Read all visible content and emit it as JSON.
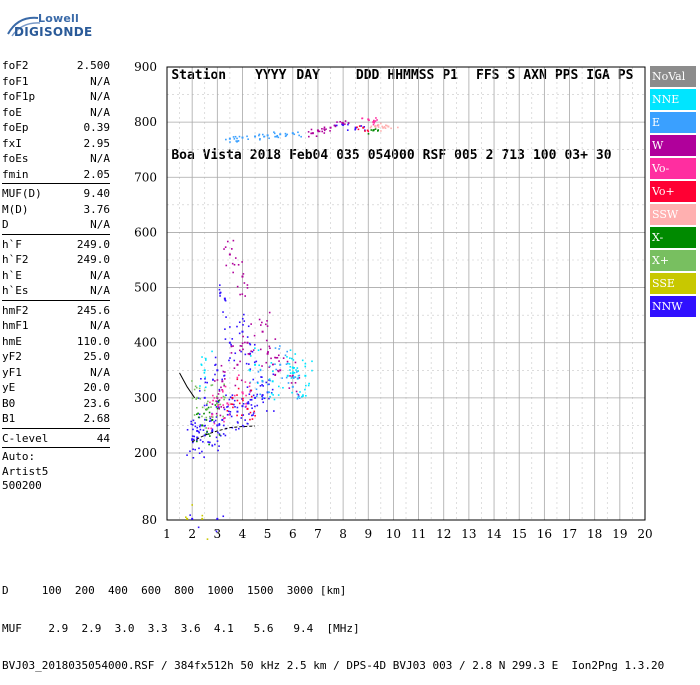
{
  "logo": {
    "line1": "Lowell",
    "line2": "DIGISONDE"
  },
  "header": {
    "columns": [
      "Station",
      "YYYY",
      "DAY",
      "DDD",
      "HHMMSS",
      "P1",
      "FFS",
      "S",
      "AXN",
      "PPS",
      "IGA",
      "PS"
    ],
    "values": [
      "Boa Vista",
      "2018",
      "Feb04",
      "035",
      "054000",
      "RSF",
      "005",
      "2",
      "713",
      "100",
      "03+",
      "30"
    ]
  },
  "params_groups": [
    [
      {
        "name": "foF2",
        "value": "2.500"
      },
      {
        "name": "foF1",
        "value": "N/A"
      },
      {
        "name": "foF1p",
        "value": "N/A"
      },
      {
        "name": "foE",
        "value": "N/A"
      },
      {
        "name": "foEp",
        "value": "0.39"
      },
      {
        "name": "fxI",
        "value": "2.95"
      },
      {
        "name": "foEs",
        "value": "N/A"
      },
      {
        "name": "fmin",
        "value": "2.05"
      }
    ],
    [
      {
        "name": "MUF(D)",
        "value": "9.40"
      },
      {
        "name": "M(D)",
        "value": "3.76"
      },
      {
        "name": "D",
        "value": "N/A"
      }
    ],
    [
      {
        "name": "h`F",
        "value": "249.0"
      },
      {
        "name": "h`F2",
        "value": "249.0"
      },
      {
        "name": "h`E",
        "value": "N/A"
      },
      {
        "name": "h`Es",
        "value": "N/A"
      }
    ],
    [
      {
        "name": "hmF2",
        "value": "245.6"
      },
      {
        "name": "hmF1",
        "value": "N/A"
      },
      {
        "name": "hmE",
        "value": "110.0"
      },
      {
        "name": "yF2",
        "value": "25.0"
      },
      {
        "name": "yF1",
        "value": "N/A"
      },
      {
        "name": "yE",
        "value": "20.0"
      },
      {
        "name": "B0",
        "value": "23.6"
      },
      {
        "name": "B1",
        "value": "2.68"
      }
    ],
    [
      {
        "name": "C-level",
        "value": "44"
      }
    ]
  ],
  "auto": {
    "line1": "Auto:",
    "line2": "Artist5",
    "line3": "500200"
  },
  "legend": [
    {
      "label": "NoVal",
      "color": "#8c8c8c"
    },
    {
      "label": "NNE",
      "color": "#00e5ff"
    },
    {
      "label": "E",
      "color": "#3aa0ff"
    },
    {
      "label": "W",
      "color": "#b0009b"
    },
    {
      "label": "Vo-",
      "color": "#ff2ea0"
    },
    {
      "label": "Vo+",
      "color": "#ff0033"
    },
    {
      "label": "SSW",
      "color": "#ffb0b0"
    },
    {
      "label": "X-",
      "color": "#008a00"
    },
    {
      "label": "X+",
      "color": "#78bf60"
    },
    {
      "label": "SSE",
      "color": "#c8c800"
    },
    {
      "label": "NNW",
      "color": "#3010ff"
    }
  ],
  "bottom": {
    "line1": "D     100  200  400  600  800  1000  1500  3000 [km]",
    "line2": "MUF    2.9  2.9  3.0  3.3  3.6  4.1   5.6   9.4  [MHz]",
    "line3": "BVJ03_2018035054000.RSF / 384fx512h 50 kHz 2.5 km / DPS-4D BVJ03 003 / 2.8 N 299.3 E  Ion2Png 1.3.20"
  },
  "chart_data": {
    "type": "scatter",
    "title": "",
    "xlabel": "",
    "ylabel": "",
    "xlim": [
      1,
      20
    ],
    "ylim": [
      80,
      900
    ],
    "x_ticks": [
      1,
      2,
      3,
      4,
      5,
      6,
      7,
      8,
      9,
      10,
      11,
      12,
      13,
      14,
      15,
      16,
      17,
      18,
      19,
      20
    ],
    "y_ticks": [
      80,
      200,
      300,
      400,
      500,
      600,
      700,
      800,
      900
    ],
    "y_axis": "piecewise: 80 at bottom, linear 200-900",
    "grid": true,
    "series": [
      {
        "name": "NNW",
        "color": "#3010ff",
        "points": [
          [
            2.0,
            225
          ],
          [
            2.2,
            228
          ],
          [
            2.5,
            232
          ],
          [
            2.8,
            240
          ],
          [
            3.0,
            250
          ],
          [
            3.2,
            260
          ],
          [
            3.5,
            270
          ],
          [
            3.8,
            275
          ],
          [
            4.0,
            285
          ],
          [
            4.2,
            290
          ],
          [
            4.5,
            300
          ],
          [
            4.8,
            305
          ],
          [
            5.0,
            310
          ],
          [
            3.0,
            350
          ],
          [
            3.5,
            400
          ],
          [
            4.0,
            420
          ],
          [
            2.5,
            300
          ],
          [
            2.2,
            240
          ],
          [
            3.3,
            480
          ],
          [
            4.3,
            380
          ],
          [
            8.0,
            795
          ],
          [
            8.5,
            790
          ],
          [
            2.0,
            82
          ],
          [
            3.0,
            82
          ]
        ]
      },
      {
        "name": "W",
        "color": "#b0009b",
        "points": [
          [
            3.2,
            330
          ],
          [
            3.8,
            360
          ],
          [
            4.2,
            400
          ],
          [
            4.8,
            420
          ],
          [
            5.0,
            380
          ],
          [
            5.5,
            350
          ],
          [
            6.0,
            340
          ],
          [
            3.0,
            300
          ],
          [
            7.0,
            785
          ],
          [
            7.5,
            790
          ],
          [
            8.0,
            798
          ],
          [
            6.8,
            780
          ],
          [
            4.0,
            520
          ],
          [
            3.5,
            560
          ]
        ]
      },
      {
        "name": "NNE",
        "color": "#00e5ff",
        "points": [
          [
            5.8,
            340
          ],
          [
            6.2,
            335
          ],
          [
            6.0,
            355
          ],
          [
            6.5,
            340
          ],
          [
            2.5,
            350
          ],
          [
            4.5,
            360
          ],
          [
            5.2,
            330
          ]
        ]
      },
      {
        "name": "E",
        "color": "#3aa0ff",
        "points": [
          [
            3.5,
            770
          ],
          [
            4.0,
            772
          ],
          [
            4.5,
            774
          ],
          [
            5.0,
            776
          ],
          [
            5.5,
            778
          ],
          [
            6.0,
            780
          ],
          [
            5.5,
            360
          ],
          [
            4.8,
            330
          ],
          [
            6.0,
            320
          ]
        ]
      },
      {
        "name": "Vo-",
        "color": "#ff2ea0",
        "points": [
          [
            2.8,
            270
          ],
          [
            3.4,
            290
          ],
          [
            4.0,
            310
          ],
          [
            9.0,
            805
          ],
          [
            9.2,
            800
          ]
        ]
      },
      {
        "name": "Vo+",
        "color": "#ff0033",
        "points": [
          [
            3.6,
            300
          ],
          [
            4.2,
            280
          ],
          [
            8.8,
            790
          ]
        ]
      },
      {
        "name": "SSW",
        "color": "#ffb0b0",
        "points": [
          [
            9.4,
            795
          ],
          [
            9.6,
            790
          ],
          [
            9.8,
            792
          ]
        ]
      },
      {
        "name": "X-",
        "color": "#008a00",
        "points": [
          [
            2.4,
            250
          ],
          [
            2.8,
            260
          ],
          [
            9.2,
            785
          ]
        ]
      },
      {
        "name": "X+",
        "color": "#78bf60",
        "points": [
          [
            2.6,
            280
          ],
          [
            3.0,
            290
          ],
          [
            2.2,
            300
          ]
        ]
      },
      {
        "name": "SSE",
        "color": "#c8c800",
        "points": [
          [
            1.8,
            82
          ],
          [
            2.4,
            82
          ]
        ]
      }
    ],
    "trace": {
      "color": "#000000",
      "points": [
        [
          2.0,
          220
        ],
        [
          2.3,
          228
        ],
        [
          2.6,
          234
        ],
        [
          3.0,
          240
        ],
        [
          3.5,
          246
        ],
        [
          4.0,
          248
        ],
        [
          4.5,
          249
        ]
      ]
    },
    "trace_upper": {
      "color": "#000000",
      "points": [
        [
          1.5,
          345
        ],
        [
          1.8,
          320
        ],
        [
          2.1,
          300
        ]
      ]
    }
  }
}
